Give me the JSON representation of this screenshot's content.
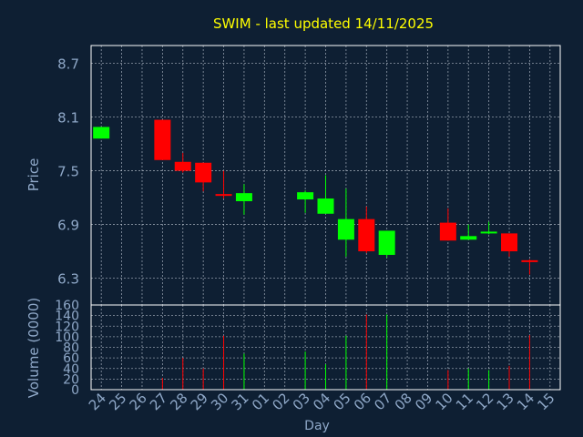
{
  "colors": {
    "background": "#0e1f33",
    "frame": "#ffffff",
    "grid": "#c8d0dc",
    "title": "#ffff00",
    "axis_text": "#8fa8c8",
    "up": "#00ff00",
    "down": "#ff0000"
  },
  "chart_data": [
    {
      "type": "candlestick",
      "title": "SWIM - last updated 14/11/2025",
      "ylabel": "Price",
      "ylim": [
        6.0,
        8.9
      ],
      "yticks": [
        "6.3",
        "6.9",
        "7.5",
        "8.1",
        "8.7"
      ],
      "grid": true,
      "candles": [
        {
          "day": "24",
          "open": 7.86,
          "high": 7.99,
          "low": 7.86,
          "close": 7.99
        },
        {
          "day": "27",
          "open": 8.07,
          "high": 8.07,
          "low": 7.62,
          "close": 7.62
        },
        {
          "day": "28",
          "open": 7.6,
          "high": 7.7,
          "low": 7.48,
          "close": 7.5
        },
        {
          "day": "29",
          "open": 7.59,
          "high": 7.59,
          "low": 7.27,
          "close": 7.37
        },
        {
          "day": "30",
          "open": 7.24,
          "high": 7.5,
          "low": 7.19,
          "close": 7.22
        },
        {
          "day": "31",
          "open": 7.16,
          "high": 7.35,
          "low": 7.01,
          "close": 7.25
        },
        {
          "day": "03",
          "open": 7.18,
          "high": 7.28,
          "low": 7.03,
          "close": 7.26
        },
        {
          "day": "04",
          "open": 7.02,
          "high": 7.45,
          "low": 7.02,
          "close": 7.19
        },
        {
          "day": "05",
          "open": 6.73,
          "high": 7.3,
          "low": 6.54,
          "close": 6.96
        },
        {
          "day": "06",
          "open": 6.96,
          "high": 7.1,
          "low": 6.58,
          "close": 6.6
        },
        {
          "day": "07",
          "open": 6.56,
          "high": 6.83,
          "low": 6.53,
          "close": 6.83
        },
        {
          "day": "10",
          "open": 6.92,
          "high": 7.08,
          "low": 6.72,
          "close": 6.72
        },
        {
          "day": "11",
          "open": 6.73,
          "high": 6.9,
          "low": 6.73,
          "close": 6.77
        },
        {
          "day": "12",
          "open": 6.81,
          "high": 6.93,
          "low": 6.79,
          "close": 6.82
        },
        {
          "day": "13",
          "open": 6.8,
          "high": 6.8,
          "low": 6.54,
          "close": 6.6
        },
        {
          "day": "14",
          "open": 6.5,
          "high": 6.51,
          "low": 6.34,
          "close": 6.48
        }
      ]
    },
    {
      "type": "bar",
      "ylabel": "Volume (0000)",
      "xlabel": "Day",
      "ylim": [
        0,
        160
      ],
      "yticks": [
        "0",
        "20",
        "40",
        "60",
        "80",
        "100",
        "120",
        "140",
        "160"
      ],
      "grid": true,
      "categories": [
        "24",
        "25",
        "26",
        "27",
        "28",
        "29",
        "30",
        "31",
        "01",
        "02",
        "03",
        "04",
        "05",
        "06",
        "07",
        "08",
        "09",
        "10",
        "11",
        "12",
        "13",
        "14",
        "15"
      ],
      "values": [
        0,
        0,
        0,
        22,
        60,
        40,
        102,
        68,
        0,
        0,
        72,
        48,
        102,
        142,
        142,
        0,
        0,
        37,
        40,
        37,
        45,
        103,
        0
      ],
      "bar_colors": [
        "",
        "",
        "",
        "down",
        "down",
        "down",
        "down",
        "up",
        "",
        "",
        "up",
        "up",
        "up",
        "down",
        "up",
        "",
        "",
        "down",
        "up",
        "up",
        "down",
        "down",
        ""
      ]
    }
  ]
}
